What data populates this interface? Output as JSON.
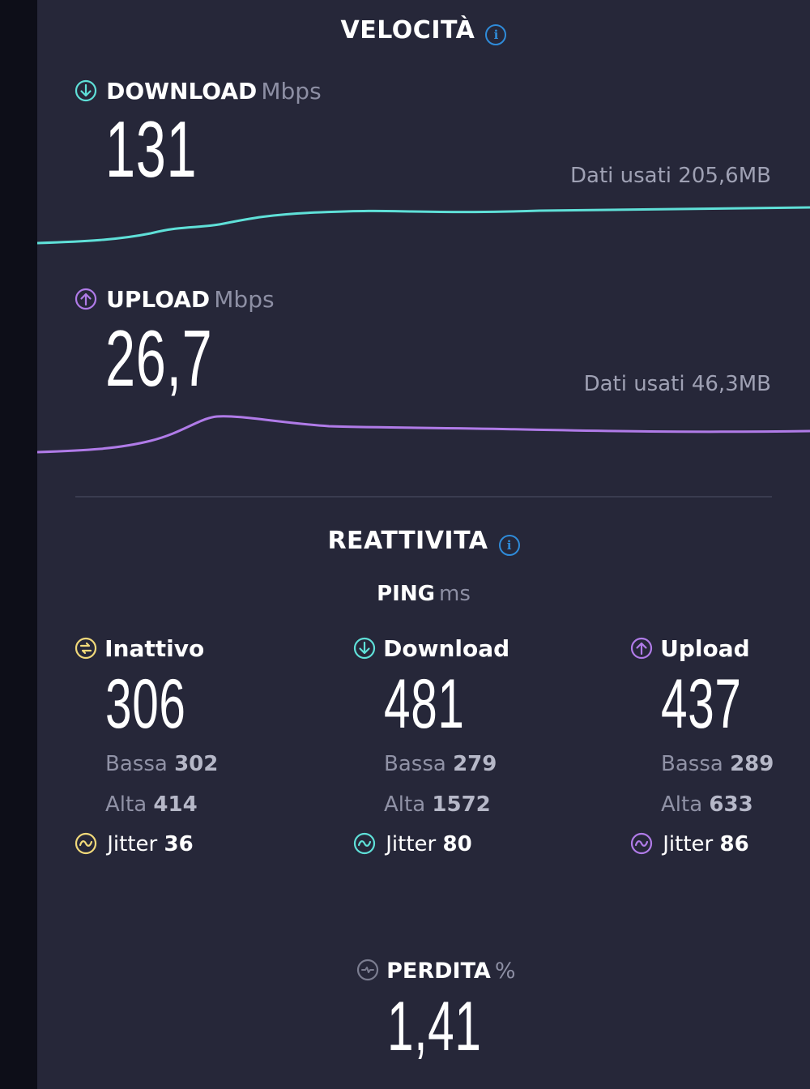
{
  "speed": {
    "title": "VELOCITÀ",
    "download": {
      "label": "DOWNLOAD",
      "unit": "Mbps",
      "value": "131",
      "data_used": "Dati usati 205,6MB",
      "color": "#5fe0d8"
    },
    "upload": {
      "label": "UPLOAD",
      "unit": "Mbps",
      "value": "26,7",
      "data_used": "Dati usati 46,3MB",
      "color": "#b07be8"
    }
  },
  "responsiveness": {
    "title": "REATTIVITA",
    "ping_label": "PING",
    "ping_unit": "ms",
    "columns": [
      {
        "label": "Inattivo",
        "value": "306",
        "low_label": "Bassa",
        "low": "302",
        "high_label": "Alta",
        "high": "414",
        "jitter_label": "Jitter",
        "jitter": "36",
        "color": "#f1d97a",
        "icon": "idle-icon"
      },
      {
        "label": "Download",
        "value": "481",
        "low_label": "Bassa",
        "low": "279",
        "high_label": "Alta",
        "high": "1572",
        "jitter_label": "Jitter",
        "jitter": "80",
        "color": "#5fe0d8",
        "icon": "download-icon"
      },
      {
        "label": "Upload",
        "value": "437",
        "low_label": "Bassa",
        "low": "289",
        "high_label": "Alta",
        "high": "633",
        "jitter_label": "Jitter",
        "jitter": "86",
        "color": "#b07be8",
        "icon": "upload-icon"
      }
    ]
  },
  "loss": {
    "label": "PERDITA",
    "unit": "%",
    "value": "1,41"
  }
}
